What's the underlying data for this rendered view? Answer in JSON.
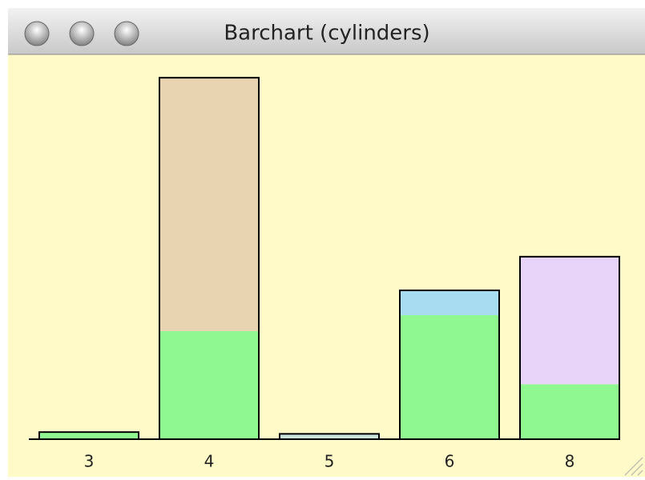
{
  "window": {
    "title": "Barchart (cylinders)"
  },
  "chart_data": {
    "type": "bar",
    "stacked": true,
    "categories": [
      "3",
      "4",
      "5",
      "6",
      "8"
    ],
    "series": [
      {
        "color": "#90f890",
        "values": [
          4,
          61,
          0,
          70,
          31
        ]
      },
      {
        "colors": [
          "#e8d4b0",
          "#e8d4b0",
          "#c8e4d8",
          "#a8dcf0",
          "#e8d4f8"
        ],
        "values": [
          0,
          143,
          3,
          14,
          72
        ]
      }
    ],
    "ylim": [
      0,
      214
    ]
  }
}
